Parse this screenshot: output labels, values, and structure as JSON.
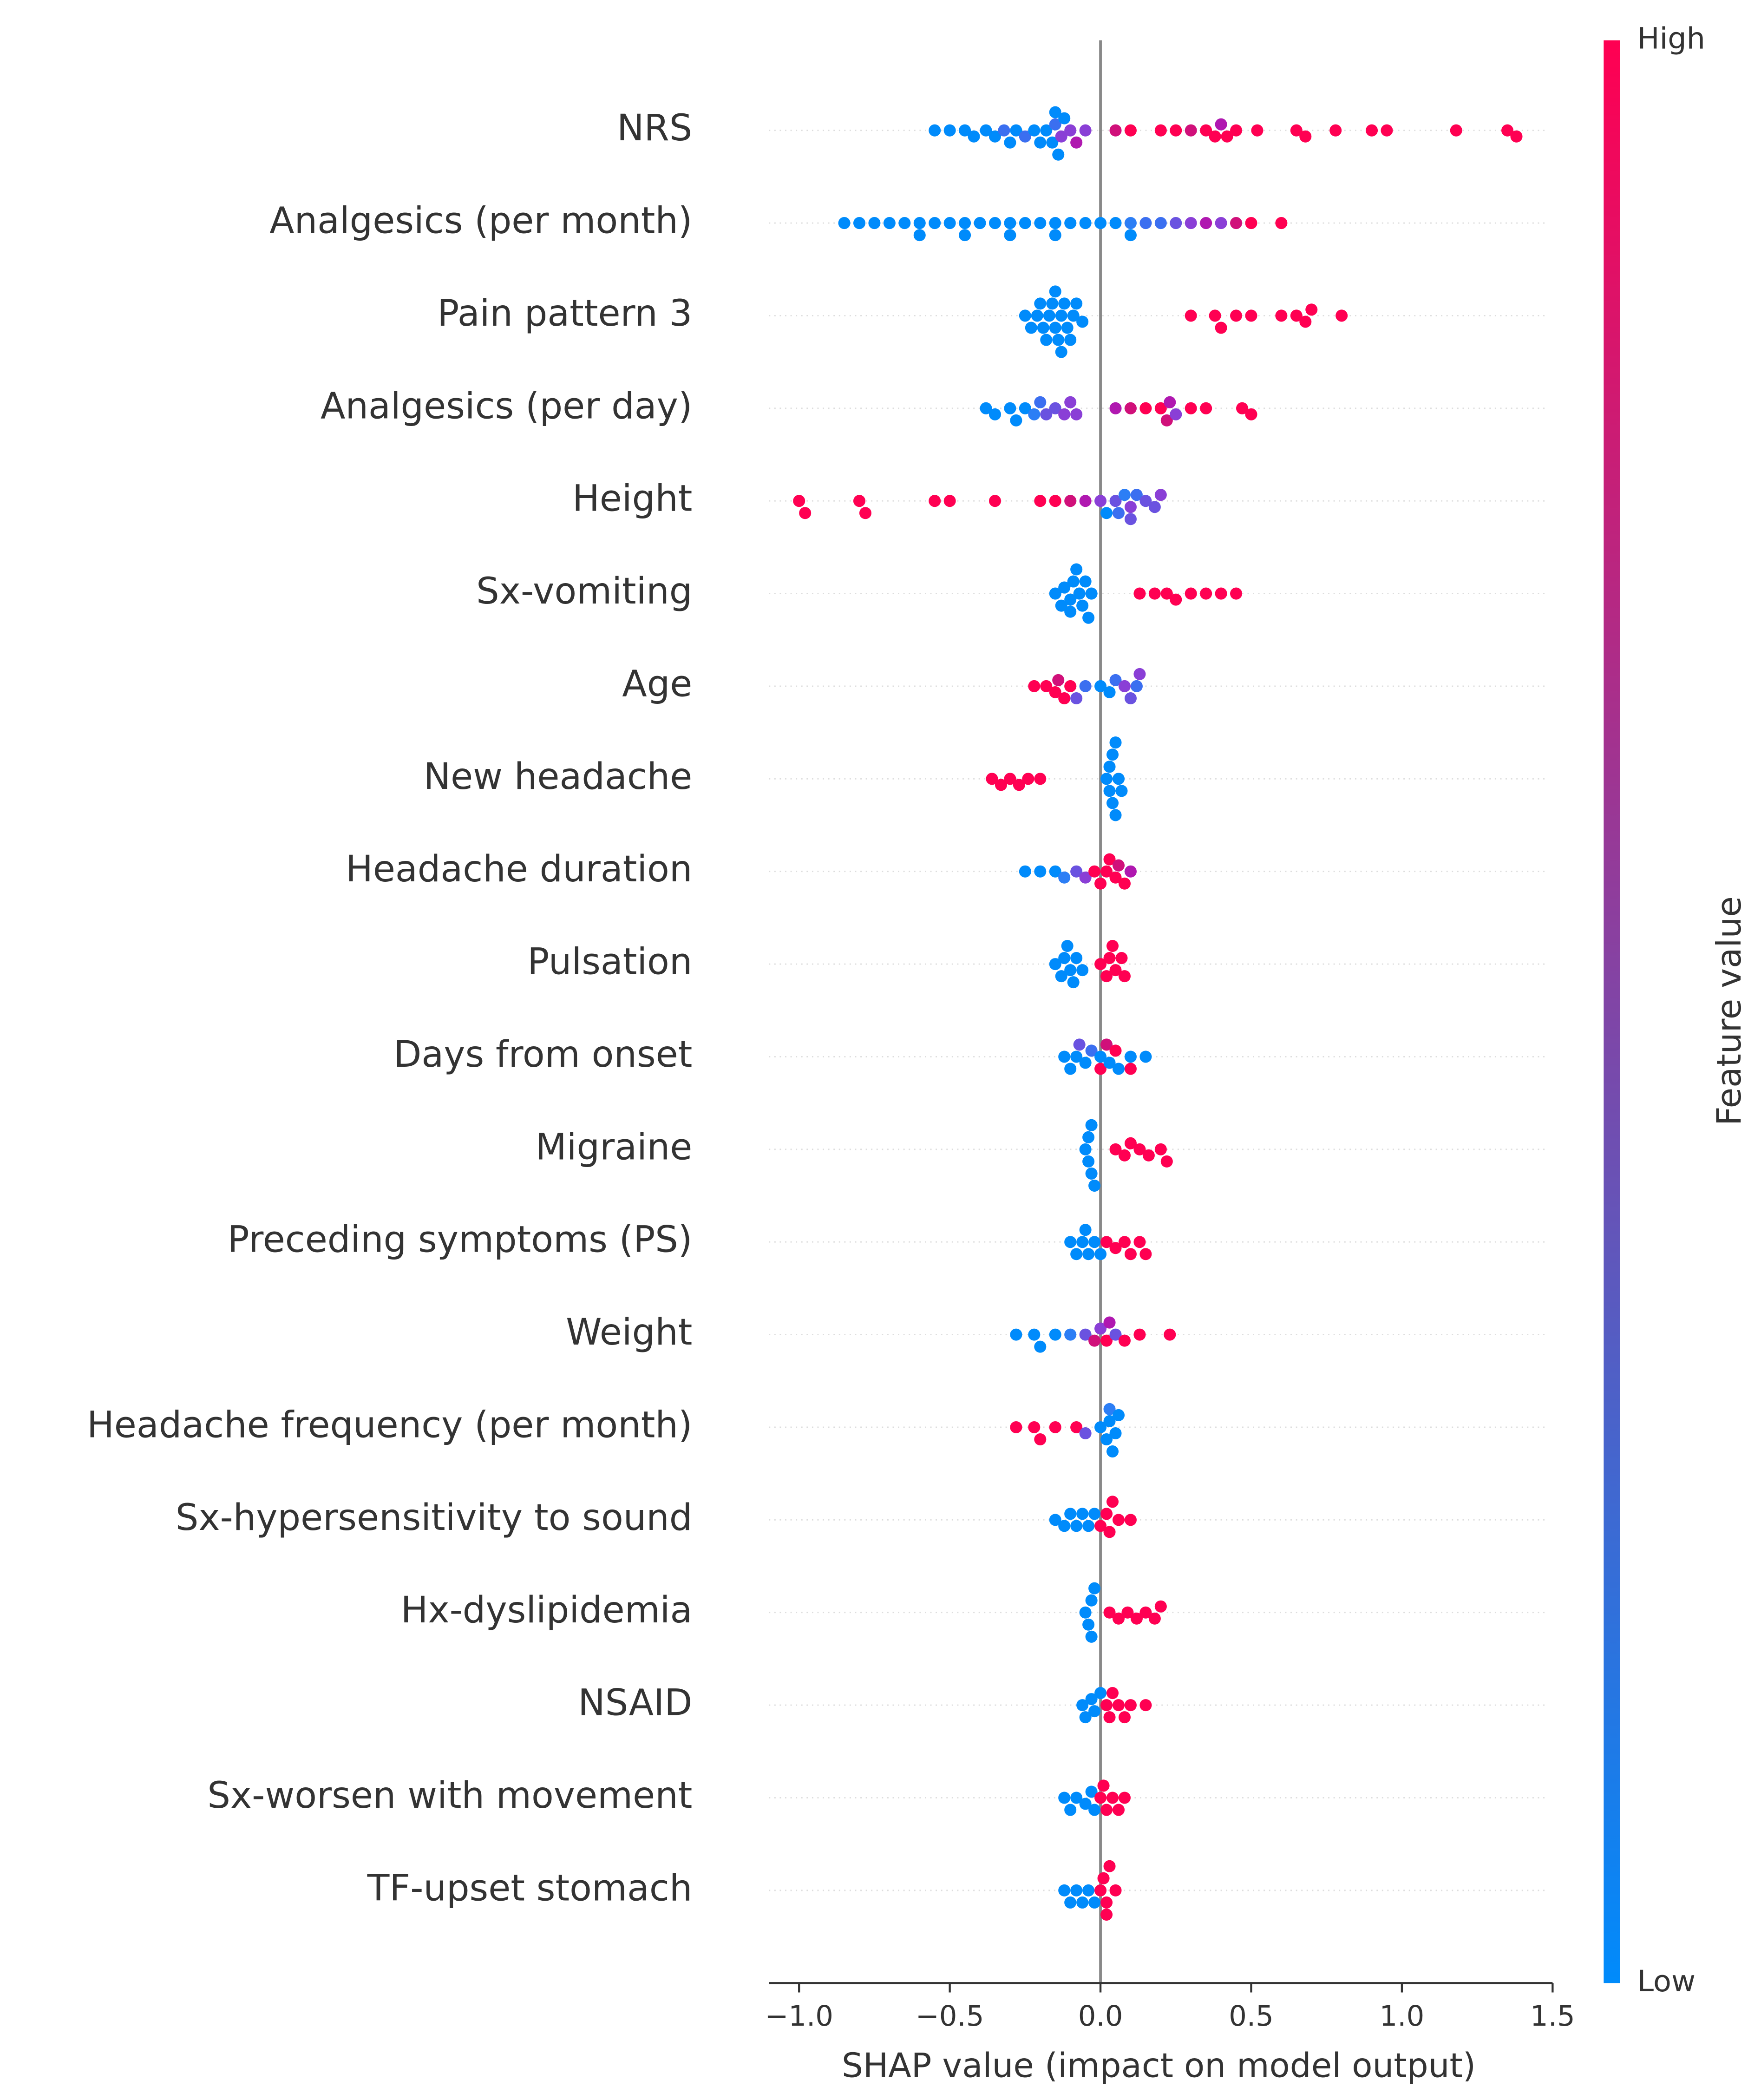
{
  "chart_data": {
    "type": "beeswarm",
    "x_label": "SHAP value (impact on model output)",
    "xlim": [
      -1.1,
      1.5
    ],
    "xticks": [
      {
        "value": -1,
        "label": "−1.0"
      },
      {
        "value": -0.5,
        "label": "−0.5"
      },
      {
        "value": 0,
        "label": "0.0"
      },
      {
        "value": 0.5,
        "label": "0.5"
      },
      {
        "value": 1,
        "label": "1.0"
      },
      {
        "value": 1.5,
        "label": "1.5"
      }
    ],
    "colorbar": {
      "label": "Feature value",
      "high_label": "High",
      "low_label": "Low",
      "low_color": "#008bfb",
      "high_color": "#ff0052"
    },
    "series": [
      {
        "name": "NRS",
        "values": [
          -0.55,
          -0.5,
          -0.45,
          -0.42,
          -0.38,
          -0.35,
          -0.32,
          -0.3,
          -0.28,
          -0.25,
          -0.22,
          -0.2,
          -0.18,
          -0.16,
          -0.15,
          -0.14,
          -0.12,
          -0.15,
          -0.1,
          -0.08,
          -0.05,
          -0.13,
          0.05,
          0.1,
          0.2,
          0.25,
          0.3,
          0.35,
          0.38,
          0.4,
          0.42,
          0.45,
          0.52,
          0.65,
          0.68,
          0.78,
          0.9,
          0.95,
          1.18,
          1.35,
          1.38
        ],
        "colors": [
          "#008bfb",
          "#008bfb",
          "#008bfb",
          "#008bfb",
          "#008bfb",
          "#008bfb",
          "#3b6ff0",
          "#008bfb",
          "#008bfb",
          "#3b6ff0",
          "#008bfb",
          "#008bfb",
          "#008bfb",
          "#008bfb",
          "#3b6ff0",
          "#008bfb",
          "#008bfb",
          "#008bfb",
          "#8a3fd6",
          "#b018b0",
          "#8a3fd6",
          "#8a3fd6",
          "#d0107a",
          "#ff0052",
          "#ff0052",
          "#ff0052",
          "#d0107a",
          "#ff0052",
          "#ff0052",
          "#b018b0",
          "#ff0052",
          "#ff0052",
          "#ff0052",
          "#ff0052",
          "#ff0052",
          "#ff0052",
          "#ff0052",
          "#ff0052",
          "#ff0052",
          "#ff0052",
          "#ff0052"
        ]
      },
      {
        "name": "Analgesics (per month)",
        "values": [
          -0.85,
          -0.8,
          -0.75,
          -0.7,
          -0.65,
          -0.6,
          -0.55,
          -0.5,
          -0.45,
          -0.4,
          -0.35,
          -0.3,
          -0.25,
          -0.2,
          -0.15,
          -0.1,
          -0.05,
          0.0,
          0.05,
          0.1,
          0.15,
          0.2,
          -0.6,
          -0.45,
          -0.3,
          -0.15,
          0.1,
          0.25,
          0.3,
          0.35,
          0.4,
          0.45,
          0.5,
          0.6
        ],
        "colors": [
          "#008bfb",
          "#008bfb",
          "#008bfb",
          "#008bfb",
          "#008bfb",
          "#008bfb",
          "#008bfb",
          "#008bfb",
          "#008bfb",
          "#008bfb",
          "#008bfb",
          "#008bfb",
          "#008bfb",
          "#008bfb",
          "#008bfb",
          "#008bfb",
          "#008bfb",
          "#008bfb",
          "#008bfb",
          "#2c7ef5",
          "#3b6ff0",
          "#3b6ff0",
          "#008bfb",
          "#008bfb",
          "#008bfb",
          "#008bfb",
          "#008bfb",
          "#6a52e0",
          "#8a3fd6",
          "#b018b0",
          "#8a3fd6",
          "#d0107a",
          "#ff0052",
          "#ff0052"
        ]
      },
      {
        "name": "Pain pattern 3",
        "values": [
          -0.25,
          -0.23,
          -0.21,
          -0.2,
          -0.19,
          -0.18,
          -0.17,
          -0.16,
          -0.15,
          -0.14,
          -0.13,
          -0.12,
          -0.11,
          -0.1,
          -0.09,
          -0.08,
          -0.06,
          -0.15,
          -0.13,
          0.3,
          0.38,
          0.4,
          0.45,
          0.5,
          0.6,
          0.65,
          0.68,
          0.7,
          0.8
        ],
        "colors": [
          "#008bfb",
          "#008bfb",
          "#008bfb",
          "#008bfb",
          "#008bfb",
          "#008bfb",
          "#008bfb",
          "#008bfb",
          "#008bfb",
          "#008bfb",
          "#008bfb",
          "#008bfb",
          "#008bfb",
          "#008bfb",
          "#008bfb",
          "#008bfb",
          "#008bfb",
          "#008bfb",
          "#008bfb",
          "#ff0052",
          "#ff0052",
          "#ff0052",
          "#ff0052",
          "#ff0052",
          "#ff0052",
          "#ff0052",
          "#ff0052",
          "#ff0052",
          "#ff0052"
        ]
      },
      {
        "name": "Analgesics (per day)",
        "values": [
          -0.38,
          -0.35,
          -0.3,
          -0.28,
          -0.25,
          -0.22,
          -0.2,
          -0.18,
          -0.15,
          -0.12,
          -0.1,
          -0.08,
          0.05,
          0.1,
          0.15,
          0.2,
          0.22,
          0.25,
          0.23,
          0.3,
          0.35,
          0.47,
          0.5
        ],
        "colors": [
          "#008bfb",
          "#008bfb",
          "#008bfb",
          "#008bfb",
          "#008bfb",
          "#2c7ef5",
          "#3b6ff0",
          "#6a52e0",
          "#6a52e0",
          "#8a3fd6",
          "#8a3fd6",
          "#8a3fd6",
          "#b018b0",
          "#d0107a",
          "#ff0052",
          "#ff0052",
          "#d0107a",
          "#8a3fd6",
          "#b018b0",
          "#ff0052",
          "#ff0052",
          "#ff0052",
          "#ff0052"
        ]
      },
      {
        "name": "Height",
        "values": [
          -1.0,
          -0.98,
          -0.8,
          -0.78,
          -0.55,
          -0.5,
          -0.35,
          -0.2,
          -0.15,
          -0.1,
          -0.05,
          0.0,
          0.05,
          0.1,
          0.15,
          0.02,
          0.08,
          0.12,
          0.18,
          0.2,
          0.1,
          0.06
        ],
        "colors": [
          "#ff0052",
          "#ff0052",
          "#ff0052",
          "#ff0052",
          "#ff0052",
          "#ff0052",
          "#ff0052",
          "#ff0052",
          "#ff0052",
          "#d0107a",
          "#b018b0",
          "#8a3fd6",
          "#6a52e0",
          "#8a3fd6",
          "#6a52e0",
          "#008bfb",
          "#2c7ef5",
          "#3b6ff0",
          "#6a52e0",
          "#8a3fd6",
          "#6a52e0",
          "#3b6ff0"
        ]
      },
      {
        "name": "Sx-vomiting",
        "values": [
          -0.15,
          -0.13,
          -0.12,
          -0.1,
          -0.09,
          -0.08,
          -0.07,
          -0.06,
          -0.05,
          -0.04,
          -0.03,
          -0.1,
          0.13,
          0.18,
          0.22,
          0.25,
          0.3,
          0.35,
          0.4,
          0.45
        ],
        "colors": [
          "#008bfb",
          "#008bfb",
          "#008bfb",
          "#008bfb",
          "#008bfb",
          "#008bfb",
          "#008bfb",
          "#008bfb",
          "#008bfb",
          "#008bfb",
          "#008bfb",
          "#008bfb",
          "#ff0052",
          "#ff0052",
          "#ff0052",
          "#ff0052",
          "#ff0052",
          "#ff0052",
          "#ff0052",
          "#ff0052"
        ]
      },
      {
        "name": "Age",
        "values": [
          -0.22,
          -0.18,
          -0.15,
          -0.12,
          -0.1,
          -0.14,
          -0.05,
          0.0,
          0.05,
          0.1,
          0.13,
          -0.08,
          0.08,
          0.12,
          0.03
        ],
        "colors": [
          "#ff0052",
          "#ff0052",
          "#ff0052",
          "#ff0052",
          "#ff0052",
          "#d0107a",
          "#3b6ff0",
          "#008bfb",
          "#3b6ff0",
          "#6a52e0",
          "#8a3fd6",
          "#6a52e0",
          "#8a3fd6",
          "#3b6ff0",
          "#008bfb"
        ]
      },
      {
        "name": "New headache",
        "values": [
          -0.36,
          -0.33,
          -0.3,
          -0.27,
          -0.24,
          -0.2,
          0.02,
          0.03,
          0.04,
          0.05,
          0.05,
          0.06,
          0.07,
          0.04,
          0.03
        ],
        "colors": [
          "#ff0052",
          "#ff0052",
          "#ff0052",
          "#ff0052",
          "#ff0052",
          "#ff0052",
          "#008bfb",
          "#008bfb",
          "#008bfb",
          "#008bfb",
          "#008bfb",
          "#008bfb",
          "#008bfb",
          "#008bfb",
          "#008bfb"
        ]
      },
      {
        "name": "Headache duration",
        "values": [
          -0.25,
          -0.2,
          -0.15,
          -0.12,
          -0.08,
          -0.05,
          0.1,
          -0.02,
          0.0,
          0.03,
          0.05,
          0.08,
          0.06,
          0.02
        ],
        "colors": [
          "#008bfb",
          "#008bfb",
          "#008bfb",
          "#2c7ef5",
          "#6a52e0",
          "#8a3fd6",
          "#b018b0",
          "#ff0052",
          "#ff0052",
          "#ff0052",
          "#ff0052",
          "#ff0052",
          "#d0107a",
          "#ff0052"
        ]
      },
      {
        "name": "Pulsation",
        "values": [
          -0.15,
          -0.13,
          -0.11,
          -0.1,
          -0.08,
          -0.06,
          -0.12,
          -0.09,
          0.0,
          0.02,
          0.03,
          0.05,
          0.07,
          0.08,
          0.04
        ],
        "colors": [
          "#008bfb",
          "#008bfb",
          "#008bfb",
          "#008bfb",
          "#008bfb",
          "#008bfb",
          "#008bfb",
          "#008bfb",
          "#ff0052",
          "#ff0052",
          "#ff0052",
          "#ff0052",
          "#ff0052",
          "#ff0052",
          "#ff0052"
        ]
      },
      {
        "name": "Days from onset",
        "values": [
          -0.12,
          -0.1,
          -0.08,
          -0.05,
          -0.03,
          0.0,
          0.03,
          0.06,
          0.1,
          0.15,
          0.0,
          0.05,
          0.1,
          -0.07,
          0.02
        ],
        "colors": [
          "#008bfb",
          "#008bfb",
          "#008bfb",
          "#008bfb",
          "#3b6ff0",
          "#008bfb",
          "#008bfb",
          "#008bfb",
          "#008bfb",
          "#008bfb",
          "#ff0052",
          "#ff0052",
          "#ff0052",
          "#6a52e0",
          "#d0107a"
        ]
      },
      {
        "name": "Migraine",
        "values": [
          -0.05,
          -0.04,
          -0.03,
          -0.03,
          -0.02,
          -0.04,
          0.05,
          0.08,
          0.1,
          0.13,
          0.16,
          0.2,
          0.22
        ],
        "colors": [
          "#008bfb",
          "#008bfb",
          "#008bfb",
          "#008bfb",
          "#008bfb",
          "#008bfb",
          "#ff0052",
          "#ff0052",
          "#ff0052",
          "#ff0052",
          "#ff0052",
          "#ff0052",
          "#ff0052"
        ]
      },
      {
        "name": "Preceding symptoms (PS)",
        "values": [
          -0.1,
          -0.08,
          -0.06,
          -0.04,
          -0.02,
          0.0,
          -0.05,
          0.02,
          0.05,
          0.08,
          0.1,
          0.13,
          0.15
        ],
        "colors": [
          "#008bfb",
          "#008bfb",
          "#008bfb",
          "#008bfb",
          "#008bfb",
          "#008bfb",
          "#008bfb",
          "#ff0052",
          "#ff0052",
          "#ff0052",
          "#ff0052",
          "#ff0052",
          "#ff0052"
        ]
      },
      {
        "name": "Weight",
        "values": [
          -0.28,
          -0.22,
          -0.2,
          -0.15,
          -0.1,
          -0.05,
          0.0,
          0.05,
          0.02,
          0.08,
          0.13,
          0.23,
          -0.02,
          0.03
        ],
        "colors": [
          "#008bfb",
          "#008bfb",
          "#008bfb",
          "#008bfb",
          "#2c7ef5",
          "#6a52e0",
          "#8a3fd6",
          "#6a52e0",
          "#ff0052",
          "#ff0052",
          "#ff0052",
          "#ff0052",
          "#d0107a",
          "#b018b0"
        ]
      },
      {
        "name": "Headache frequency (per month)",
        "values": [
          -0.28,
          -0.22,
          -0.2,
          -0.15,
          -0.08,
          -0.05,
          0.0,
          0.02,
          0.03,
          0.04,
          0.05,
          0.06,
          0.03
        ],
        "colors": [
          "#ff0052",
          "#ff0052",
          "#ff0052",
          "#ff0052",
          "#ff0052",
          "#6a52e0",
          "#008bfb",
          "#008bfb",
          "#008bfb",
          "#008bfb",
          "#008bfb",
          "#008bfb",
          "#2c7ef5"
        ]
      },
      {
        "name": "Sx-hypersensitivity to sound",
        "values": [
          -0.15,
          -0.12,
          -0.1,
          -0.08,
          -0.06,
          -0.04,
          -0.02,
          0.0,
          0.02,
          0.04,
          0.06,
          0.1,
          0.03
        ],
        "colors": [
          "#008bfb",
          "#008bfb",
          "#008bfb",
          "#008bfb",
          "#008bfb",
          "#008bfb",
          "#008bfb",
          "#ff0052",
          "#ff0052",
          "#ff0052",
          "#ff0052",
          "#ff0052",
          "#ff0052"
        ]
      },
      {
        "name": "Hx-dyslipidemia",
        "values": [
          -0.05,
          -0.04,
          -0.03,
          -0.03,
          -0.02,
          0.03,
          0.06,
          0.09,
          0.12,
          0.15,
          0.18,
          0.2
        ],
        "colors": [
          "#008bfb",
          "#008bfb",
          "#008bfb",
          "#008bfb",
          "#008bfb",
          "#ff0052",
          "#ff0052",
          "#ff0052",
          "#ff0052",
          "#ff0052",
          "#ff0052",
          "#ff0052"
        ]
      },
      {
        "name": "NSAID",
        "values": [
          -0.06,
          -0.05,
          -0.03,
          -0.02,
          0.0,
          0.02,
          0.04,
          0.06,
          0.08,
          0.1,
          0.15,
          0.03
        ],
        "colors": [
          "#008bfb",
          "#008bfb",
          "#008bfb",
          "#008bfb",
          "#008bfb",
          "#ff0052",
          "#ff0052",
          "#ff0052",
          "#ff0052",
          "#ff0052",
          "#ff0052",
          "#ff0052"
        ]
      },
      {
        "name": "Sx-worsen with movement",
        "values": [
          -0.12,
          -0.1,
          -0.08,
          -0.05,
          -0.03,
          -0.02,
          0.0,
          0.02,
          0.04,
          0.06,
          0.08,
          0.01
        ],
        "colors": [
          "#008bfb",
          "#008bfb",
          "#008bfb",
          "#008bfb",
          "#008bfb",
          "#008bfb",
          "#ff0052",
          "#ff0052",
          "#ff0052",
          "#ff0052",
          "#ff0052",
          "#ff0052"
        ]
      },
      {
        "name": "TF-upset stomach",
        "values": [
          -0.12,
          -0.1,
          -0.08,
          -0.06,
          -0.04,
          -0.02,
          0.0,
          0.01,
          0.02,
          0.03,
          0.05,
          0.02
        ],
        "colors": [
          "#008bfb",
          "#008bfb",
          "#008bfb",
          "#008bfb",
          "#008bfb",
          "#008bfb",
          "#ff0052",
          "#ff0052",
          "#ff0052",
          "#ff0052",
          "#ff0052",
          "#ff0052"
        ]
      }
    ]
  }
}
